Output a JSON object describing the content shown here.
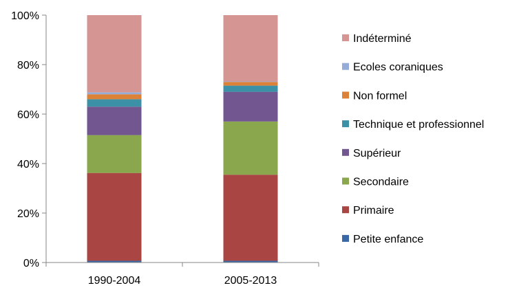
{
  "chart_data": {
    "type": "bar",
    "stacked": true,
    "percent": true,
    "title": "",
    "xlabel": "",
    "ylabel": "",
    "ylim": [
      0,
      100
    ],
    "y_ticks": [
      "0%",
      "20%",
      "40%",
      "60%",
      "80%",
      "100%"
    ],
    "grid": false,
    "legend_position": "right",
    "categories": [
      "1990-2004",
      "2005-2013"
    ],
    "series": [
      {
        "name": "Petite enfance",
        "color": "#3A68A6",
        "values": [
          0.7,
          0.7
        ]
      },
      {
        "name": "Primaire",
        "color": "#A94542",
        "values": [
          35.5,
          34.8
        ]
      },
      {
        "name": "Secondaire",
        "color": "#8AA74D",
        "values": [
          15.3,
          21.5
        ]
      },
      {
        "name": "Supérieur",
        "color": "#725690",
        "values": [
          11.5,
          12.0
        ]
      },
      {
        "name": "Technique et professionnel",
        "color": "#3C91A7",
        "values": [
          3.0,
          2.5
        ]
      },
      {
        "name": "Non formel",
        "color": "#DB8138",
        "values": [
          2.0,
          1.5
        ]
      },
      {
        "name": "Ecoles coraniques",
        "color": "#95ACD8",
        "values": [
          0.8,
          0.2
        ]
      },
      {
        "name": "Indéterminé",
        "color": "#D59593",
        "values": [
          31.2,
          26.8
        ]
      }
    ]
  }
}
